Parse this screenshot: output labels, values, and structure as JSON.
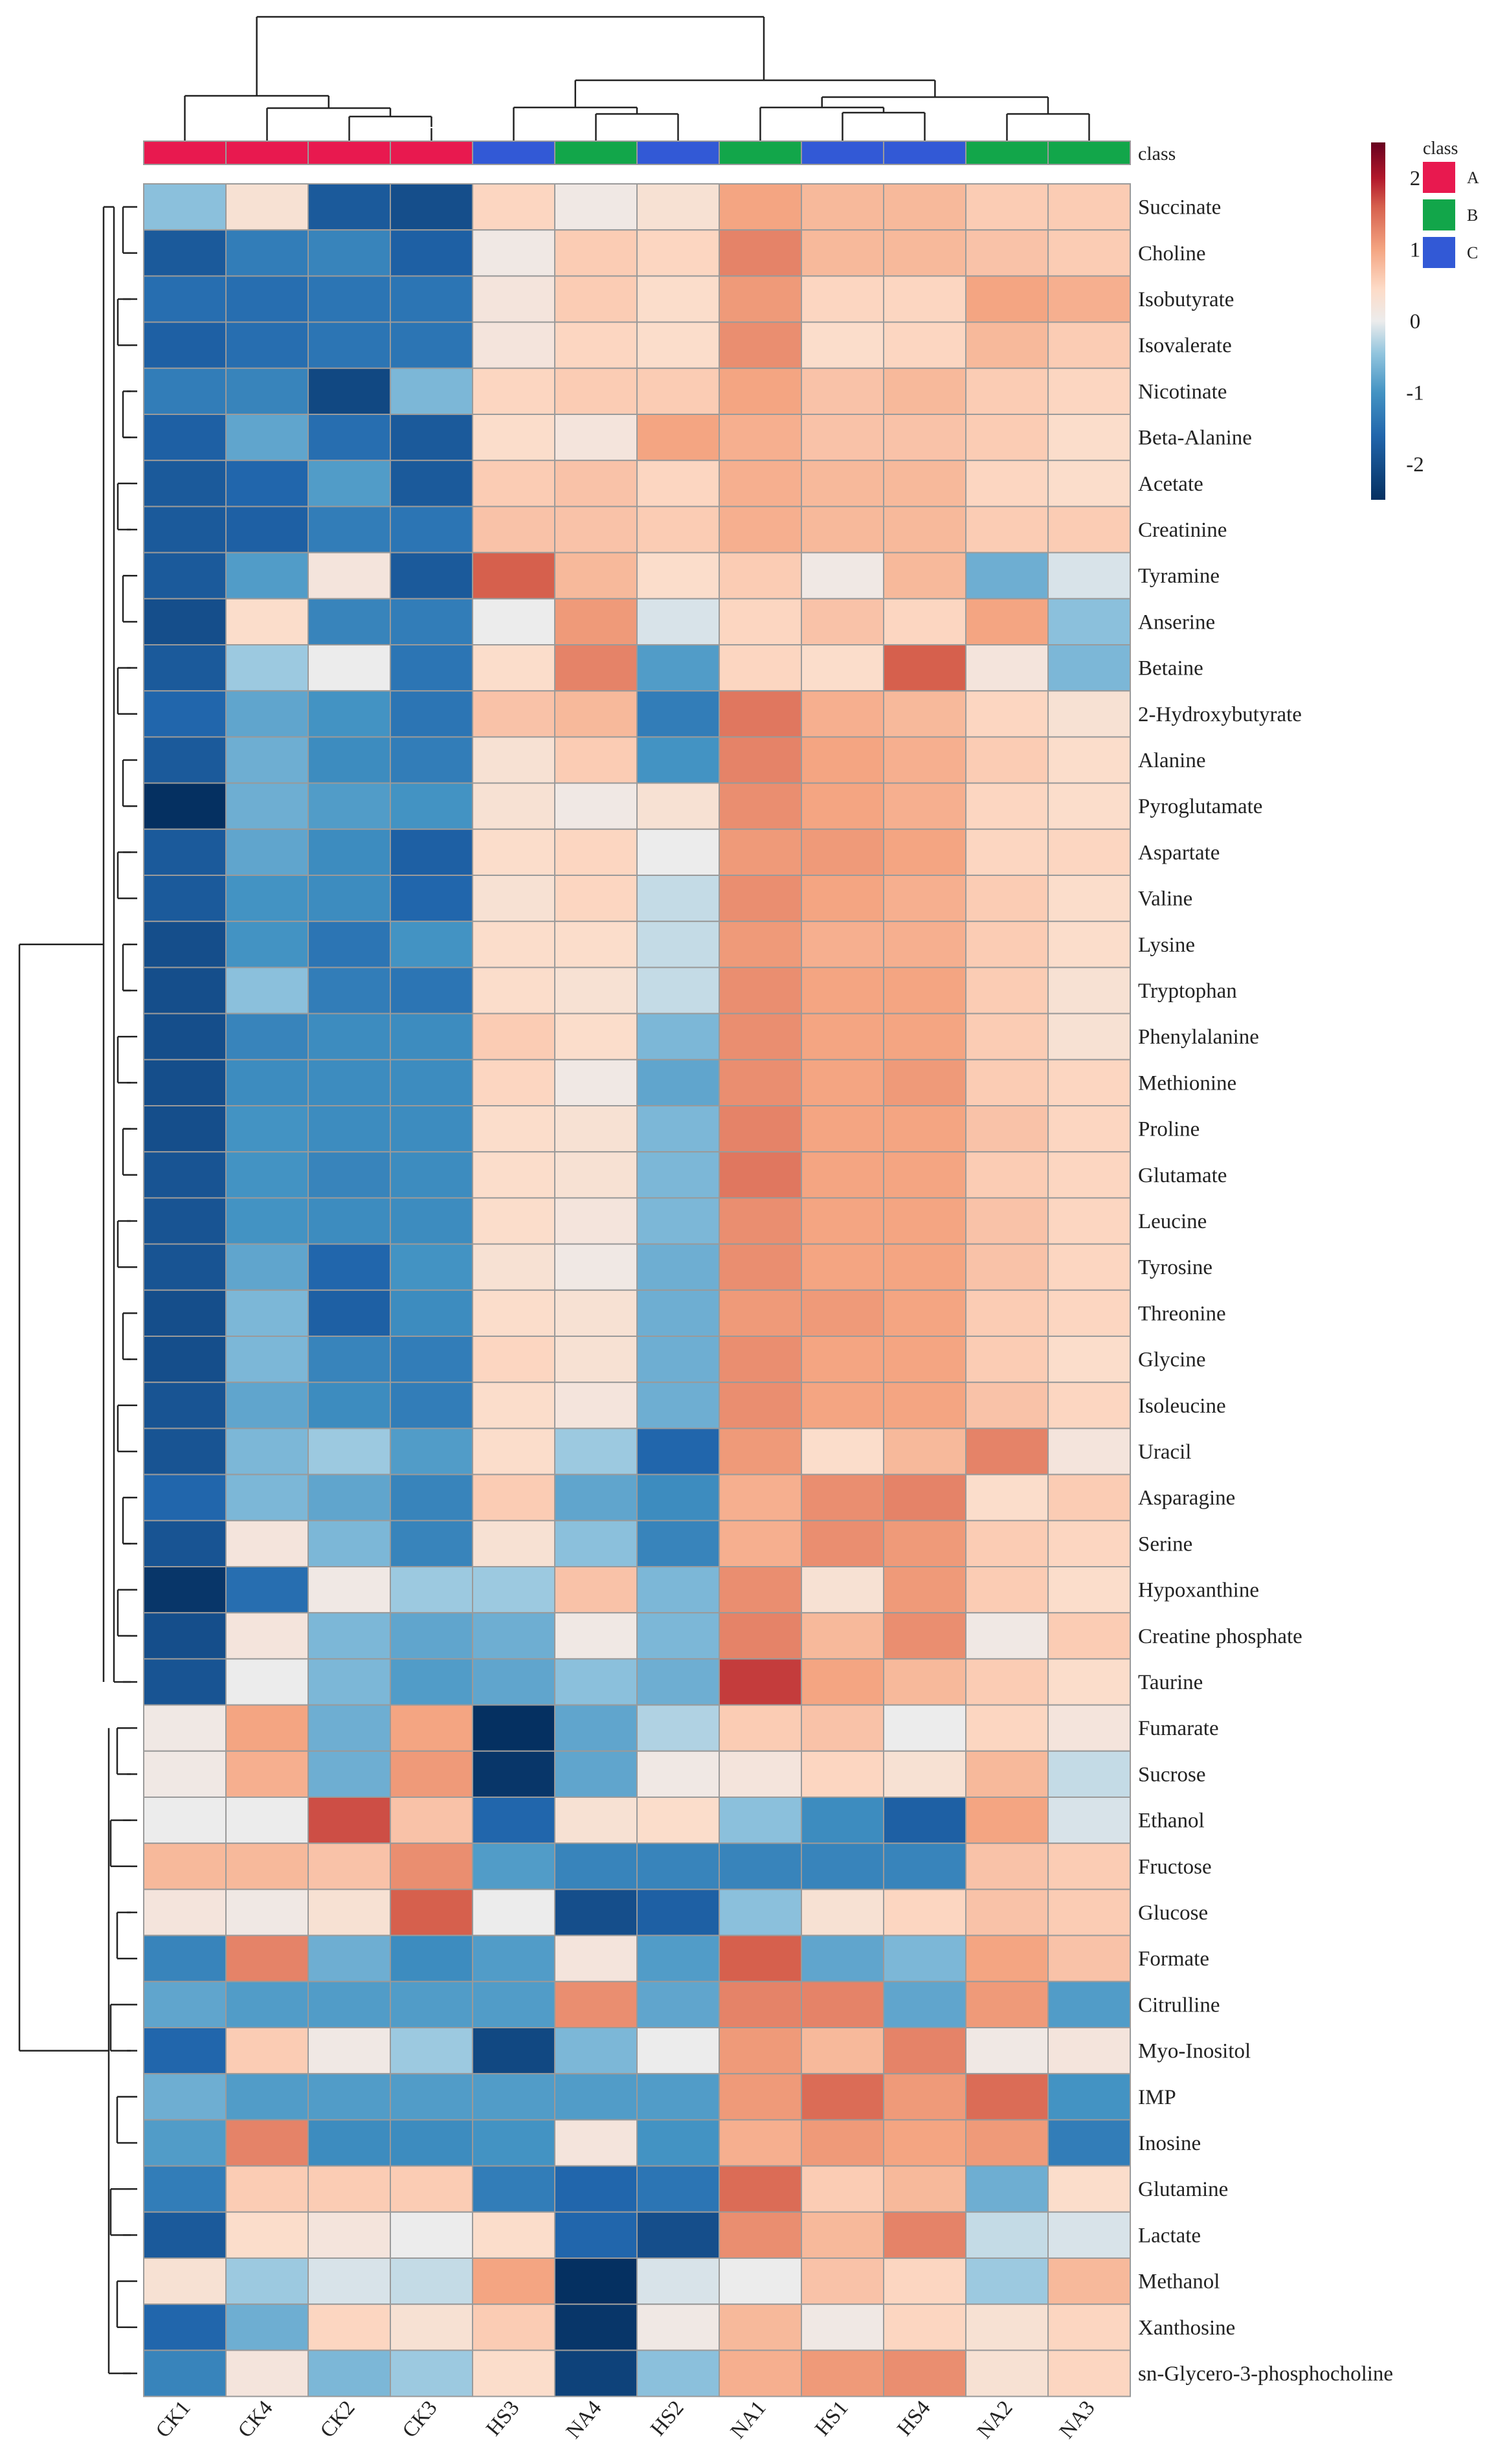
{
  "chart_data": {
    "type": "heatmap",
    "title": "",
    "samples": [
      "CK1",
      "CK4",
      "CK2",
      "CK3",
      "HS3",
      "NA4",
      "HS2",
      "NA1",
      "HS1",
      "HS4",
      "NA2",
      "NA3"
    ],
    "sample_class": [
      "A",
      "A",
      "A",
      "A",
      "C",
      "B",
      "C",
      "B",
      "C",
      "C",
      "B",
      "B"
    ],
    "class_annotation_label": "class",
    "class_legend": {
      "title": "class",
      "entries": [
        {
          "name": "A",
          "color": "#e8194f"
        },
        {
          "name": "B",
          "color": "#12a64a"
        },
        {
          "name": "C",
          "color": "#3259d6"
        }
      ]
    },
    "colorbar": {
      "ticks": [
        "2",
        "1",
        "0",
        "-1",
        "-2"
      ],
      "range": [
        -2.5,
        2.5
      ]
    },
    "colors": {
      "low": "#053061",
      "mid": "#ececec",
      "high": "#67001f",
      "grid": "#9a9a9a"
    },
    "metabolites": [
      "Succinate",
      "Choline",
      "Isobutyrate",
      "Isovalerate",
      "Nicotinate",
      "Beta-Alanine",
      "Acetate",
      "Creatinine",
      "Tyramine",
      "Anserine",
      "Betaine",
      "2-Hydroxybutyrate",
      "Alanine",
      "Pyroglutamate",
      "Aspartate",
      "Valine",
      "Lysine",
      "Tryptophan",
      "Phenylalanine",
      "Methionine",
      "Proline",
      "Glutamate",
      "Leucine",
      "Tyrosine",
      "Threonine",
      "Glycine",
      "Isoleucine",
      "Uracil",
      "Asparagine",
      "Serine",
      "Hypoxanthine",
      "Creatine phosphate",
      "Taurine",
      "Fumarate",
      "Sucrose",
      "Ethanol",
      "Fructose",
      "Glucose",
      "Formate",
      "Citrulline",
      "Myo-Inositol",
      "IMP",
      "Inosine",
      "Glutamine",
      "Lactate",
      "Methanol",
      "Xanthosine",
      "sn-Glycero-3-phosphocholine"
    ],
    "values": [
      [
        -0.5,
        0.3,
        -1.8,
        -2.0,
        0.5,
        0.1,
        0.3,
        1.0,
        0.8,
        0.8,
        0.6,
        0.6
      ],
      [
        -1.8,
        -1.3,
        -1.2,
        -1.7,
        0.1,
        0.6,
        0.5,
        1.3,
        0.8,
        0.8,
        0.7,
        0.6
      ],
      [
        -1.5,
        -1.5,
        -1.4,
        -1.4,
        0.2,
        0.6,
        0.4,
        1.1,
        0.5,
        0.5,
        1.0,
        0.9
      ],
      [
        -1.7,
        -1.5,
        -1.4,
        -1.4,
        0.2,
        0.5,
        0.4,
        1.2,
        0.4,
        0.5,
        0.8,
        0.6
      ],
      [
        -1.3,
        -1.2,
        -2.1,
        -0.6,
        0.5,
        0.6,
        0.6,
        1.0,
        0.7,
        0.8,
        0.6,
        0.5
      ],
      [
        -1.7,
        -0.8,
        -1.5,
        -1.8,
        0.4,
        0.2,
        1.0,
        0.9,
        0.7,
        0.7,
        0.6,
        0.4
      ],
      [
        -1.8,
        -1.6,
        -0.9,
        -1.8,
        0.6,
        0.7,
        0.5,
        0.9,
        0.8,
        0.8,
        0.5,
        0.4
      ],
      [
        -1.8,
        -1.7,
        -1.3,
        -1.4,
        0.7,
        0.7,
        0.6,
        0.9,
        0.8,
        0.8,
        0.6,
        0.6
      ],
      [
        -1.8,
        -0.9,
        0.2,
        -1.8,
        1.6,
        0.8,
        0.4,
        0.6,
        0.1,
        0.8,
        -0.7,
        -0.1
      ],
      [
        -2.0,
        0.4,
        -1.2,
        -1.3,
        0.0,
        1.1,
        -0.1,
        0.5,
        0.7,
        0.5,
        1.0,
        -0.5
      ],
      [
        -1.8,
        -0.4,
        0.0,
        -1.4,
        0.4,
        1.3,
        -0.9,
        0.5,
        0.4,
        1.6,
        0.2,
        -0.6
      ],
      [
        -1.6,
        -0.8,
        -1.0,
        -1.4,
        0.7,
        0.8,
        -1.3,
        1.4,
        0.9,
        0.8,
        0.5,
        0.3
      ],
      [
        -1.8,
        -0.7,
        -1.1,
        -1.3,
        0.3,
        0.6,
        -1.0,
        1.3,
        1.0,
        0.9,
        0.6,
        0.4
      ],
      [
        -2.5,
        -0.7,
        -0.9,
        -1.0,
        0.3,
        0.1,
        0.3,
        1.2,
        1.0,
        0.9,
        0.5,
        0.4
      ],
      [
        -1.8,
        -0.8,
        -1.1,
        -1.7,
        0.4,
        0.5,
        0.0,
        1.1,
        1.1,
        1.0,
        0.5,
        0.5
      ],
      [
        -1.8,
        -1.0,
        -1.1,
        -1.6,
        0.3,
        0.5,
        -0.2,
        1.2,
        1.0,
        0.9,
        0.6,
        0.4
      ],
      [
        -2.0,
        -1.0,
        -1.4,
        -1.0,
        0.4,
        0.4,
        -0.2,
        1.1,
        0.9,
        0.9,
        0.6,
        0.4
      ],
      [
        -2.0,
        -0.5,
        -1.3,
        -1.4,
        0.4,
        0.3,
        -0.2,
        1.2,
        1.0,
        1.0,
        0.6,
        0.3
      ],
      [
        -2.0,
        -1.2,
        -1.1,
        -1.1,
        0.6,
        0.4,
        -0.6,
        1.2,
        1.0,
        1.0,
        0.6,
        0.3
      ],
      [
        -2.0,
        -1.1,
        -1.1,
        -1.1,
        0.5,
        0.1,
        -0.8,
        1.2,
        1.0,
        1.1,
        0.6,
        0.5
      ],
      [
        -2.0,
        -1.0,
        -1.1,
        -1.1,
        0.4,
        0.3,
        -0.6,
        1.3,
        1.0,
        1.0,
        0.7,
        0.5
      ],
      [
        -1.9,
        -1.0,
        -1.2,
        -1.1,
        0.4,
        0.3,
        -0.6,
        1.4,
        1.0,
        1.0,
        0.6,
        0.5
      ],
      [
        -1.9,
        -1.0,
        -1.1,
        -1.1,
        0.4,
        0.2,
        -0.6,
        1.2,
        1.0,
        1.0,
        0.7,
        0.5
      ],
      [
        -1.9,
        -0.8,
        -1.6,
        -1.0,
        0.3,
        0.1,
        -0.7,
        1.2,
        1.0,
        1.0,
        0.7,
        0.5
      ],
      [
        -2.0,
        -0.6,
        -1.7,
        -1.1,
        0.4,
        0.3,
        -0.7,
        1.1,
        1.1,
        1.0,
        0.6,
        0.5
      ],
      [
        -2.0,
        -0.6,
        -1.2,
        -1.3,
        0.5,
        0.3,
        -0.7,
        1.2,
        1.0,
        1.0,
        0.6,
        0.4
      ],
      [
        -1.9,
        -0.8,
        -1.1,
        -1.3,
        0.4,
        0.2,
        -0.7,
        1.2,
        1.0,
        1.0,
        0.7,
        0.5
      ],
      [
        -1.9,
        -0.6,
        -0.4,
        -0.9,
        0.4,
        -0.4,
        -1.6,
        1.1,
        0.4,
        0.8,
        1.3,
        0.2
      ],
      [
        -1.6,
        -0.6,
        -0.8,
        -1.2,
        0.6,
        -0.8,
        -1.1,
        0.9,
        1.2,
        1.3,
        0.4,
        0.6
      ],
      [
        -1.9,
        0.2,
        -0.6,
        -1.2,
        0.3,
        -0.5,
        -1.2,
        0.9,
        1.2,
        1.1,
        0.6,
        0.5
      ],
      [
        -2.4,
        -1.5,
        0.1,
        -0.4,
        -0.4,
        0.7,
        -0.6,
        1.2,
        0.3,
        1.1,
        0.6,
        0.4
      ],
      [
        -2.0,
        0.2,
        -0.6,
        -0.8,
        -0.7,
        0.1,
        -0.6,
        1.3,
        0.8,
        1.2,
        0.1,
        0.6
      ],
      [
        -1.9,
        0.0,
        -0.6,
        -0.9,
        -0.8,
        -0.5,
        -0.7,
        1.8,
        1.0,
        0.8,
        0.6,
        0.4
      ],
      [
        0.1,
        1.0,
        -0.7,
        1.0,
        -2.5,
        -0.8,
        -0.3,
        0.6,
        0.7,
        0.0,
        0.5,
        0.2
      ],
      [
        0.1,
        0.9,
        -0.7,
        1.1,
        -2.4,
        -0.8,
        0.1,
        0.2,
        0.5,
        0.3,
        0.8,
        -0.2
      ],
      [
        0.0,
        0.0,
        1.7,
        0.7,
        -1.6,
        0.3,
        0.4,
        -0.5,
        -1.1,
        -1.7,
        1.0,
        -0.1
      ],
      [
        0.8,
        0.8,
        0.7,
        1.2,
        -0.9,
        -1.2,
        -1.2,
        -1.2,
        -1.2,
        -1.2,
        0.7,
        0.6
      ],
      [
        0.2,
        0.1,
        0.3,
        1.6,
        0.0,
        -2.0,
        -1.7,
        -0.5,
        0.3,
        0.5,
        0.7,
        0.6
      ],
      [
        -1.2,
        1.3,
        -0.7,
        -1.1,
        -0.9,
        0.2,
        -0.9,
        1.6,
        -0.8,
        -0.6,
        1.0,
        0.7
      ],
      [
        -0.8,
        -0.9,
        -0.9,
        -0.9,
        -0.9,
        1.2,
        -0.8,
        1.3,
        1.3,
        -0.8,
        1.1,
        -0.9
      ],
      [
        -1.6,
        0.6,
        0.1,
        -0.4,
        -2.1,
        -0.6,
        0.0,
        1.1,
        0.8,
        1.3,
        0.1,
        0.2
      ],
      [
        -0.7,
        -0.9,
        -0.9,
        -0.9,
        -0.9,
        -0.9,
        -0.9,
        1.1,
        1.5,
        1.1,
        1.5,
        -1.0
      ],
      [
        -0.9,
        1.3,
        -1.1,
        -1.1,
        -1.0,
        0.2,
        -1.0,
        0.9,
        1.1,
        1.0,
        1.1,
        -1.3
      ],
      [
        -1.3,
        0.6,
        0.6,
        0.6,
        -1.3,
        -1.6,
        -1.4,
        1.5,
        0.6,
        0.8,
        -0.7,
        0.4
      ],
      [
        -1.8,
        0.4,
        0.2,
        0.0,
        0.4,
        -1.6,
        -2.0,
        1.2,
        0.8,
        1.3,
        -0.2,
        -0.1
      ],
      [
        0.3,
        -0.4,
        -0.1,
        -0.2,
        1.0,
        -2.8,
        -0.1,
        0.0,
        0.7,
        0.5,
        -0.4,
        0.8
      ],
      [
        -1.6,
        -0.7,
        0.5,
        0.3,
        0.6,
        -2.4,
        0.1,
        0.8,
        0.1,
        0.5,
        0.3,
        0.5
      ],
      [
        -1.2,
        0.2,
        -0.6,
        -0.4,
        0.4,
        -2.2,
        -0.5,
        0.9,
        1.1,
        1.2,
        0.3,
        0.5
      ]
    ]
  }
}
